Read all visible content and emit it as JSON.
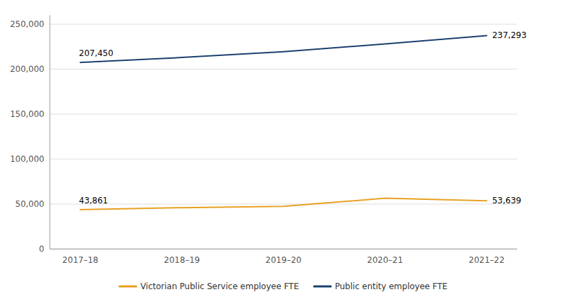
{
  "chart_data": {
    "type": "line",
    "categories": [
      "2017–18",
      "2018–19",
      "2019–20",
      "2020–21",
      "2021–22"
    ],
    "series": [
      {
        "name": "Victorian Public Service employee FTE",
        "color": "#E8A020",
        "values": [
          43861,
          46000,
          47500,
          56500,
          53639
        ]
      },
      {
        "name": "Public entity employee FTE",
        "color": "#1A3F6F",
        "values": [
          207450,
          213000,
          219500,
          228000,
          237293
        ]
      }
    ],
    "ylim": [
      0,
      260000
    ],
    "yticks": [
      0,
      {
        "value": 50000,
        "label": "50,000"
      },
      {
        "value": 100000,
        "label": "100,000"
      },
      {
        "value": 150000,
        "label": "150,000"
      },
      {
        "value": 200000,
        "label": "200,000"
      },
      {
        "value": 250000,
        "label": "250,000"
      }
    ],
    "grid": true,
    "legend": "bottom",
    "annotations": [
      {
        "x": "2017–18",
        "value": 43861,
        "label": "43,861"
      },
      {
        "x": "2021–22",
        "value": 53639,
        "label": "53,639"
      },
      {
        "x": "2017–18",
        "value": 207450,
        "label": "207,450"
      },
      {
        "x": "2021–22",
        "value": 237293,
        "label": "237,293"
      }
    ]
  }
}
